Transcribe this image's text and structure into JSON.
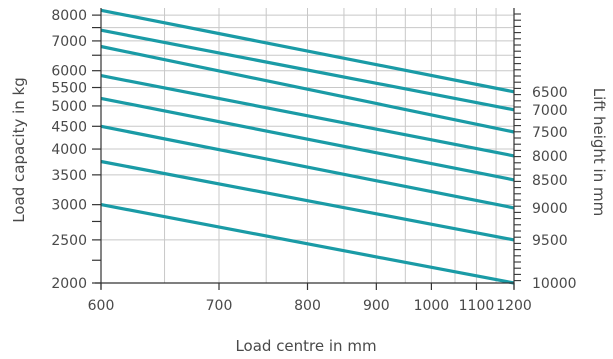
{
  "chart_data": {
    "type": "line",
    "title": "",
    "xlabel": "Load centre in mm",
    "ylabel": "Load capacity in kg",
    "ylabel_right": "Lift height in mm",
    "x_scale": "reciprocal",
    "y_scale": "log",
    "xlim": [
      600,
      1200
    ],
    "ylim": [
      2000,
      8300
    ],
    "grid": true,
    "line_color": "#1a9ba6",
    "grid_color": "#c8c8c8",
    "x_ticks": [
      600,
      700,
      800,
      900,
      1000,
      1100,
      1200
    ],
    "x_gridlines": [
      600,
      650,
      700,
      750,
      800,
      850,
      900,
      950,
      1000,
      1050,
      1100,
      1150,
      1200
    ],
    "y_ticks_left": [
      8000,
      7000,
      6000,
      5500,
      5000,
      4500,
      4000,
      3500,
      3000,
      2500,
      2000
    ],
    "y_minor_left": [
      7500,
      6500,
      2750,
      2250
    ],
    "y_gridlines": [
      8000,
      7500,
      7000,
      6500,
      6000,
      5500,
      5000,
      4500,
      4000,
      3500,
      3000,
      2500,
      2000
    ],
    "right_axis_labels": [
      "6500",
      "7000",
      "7500",
      "8000",
      "8500",
      "9000",
      "9500",
      "10000"
    ],
    "series": [
      {
        "x": [
          600,
          1200
        ],
        "y": [
          8200,
          5380
        ]
      },
      {
        "x": [
          600,
          1200
        ],
        "y": [
          7400,
          4900
        ]
      },
      {
        "x": [
          600,
          1200
        ],
        "y": [
          6800,
          4370
        ]
      },
      {
        "x": [
          600,
          1200
        ],
        "y": [
          5850,
          3860
        ]
      },
      {
        "x": [
          600,
          1200
        ],
        "y": [
          5200,
          3410
        ]
      },
      {
        "x": [
          600,
          1200
        ],
        "y": [
          4500,
          2950
        ]
      },
      {
        "x": [
          600,
          1200
        ],
        "y": [
          3750,
          2500
        ]
      },
      {
        "x": [
          600,
          1200
        ],
        "y": [
          3000,
          2000
        ]
      }
    ]
  }
}
